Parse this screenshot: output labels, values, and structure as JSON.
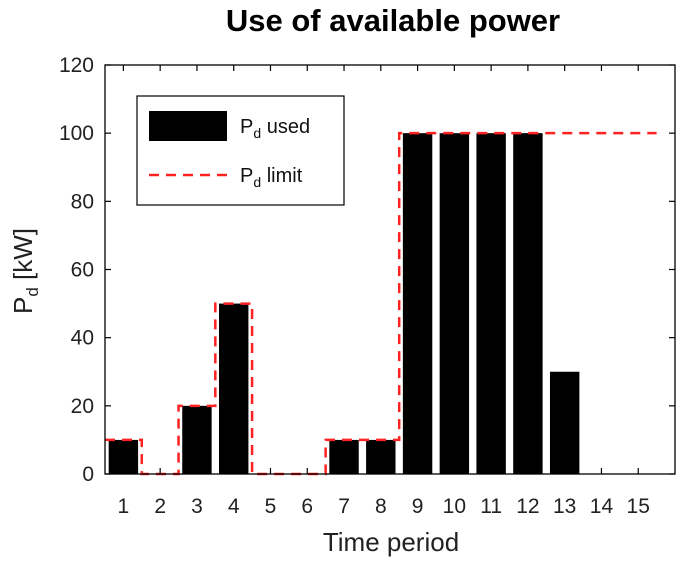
{
  "chart_data": {
    "type": "bar",
    "title": "Use of available power",
    "xlabel": "Time period",
    "ylabel_main": "P",
    "ylabel_sub": "d",
    "ylabel_unit": " [kW]",
    "categories": [
      1,
      2,
      3,
      4,
      5,
      6,
      7,
      8,
      9,
      10,
      11,
      12,
      13,
      14,
      15
    ],
    "ylim": [
      0,
      120
    ],
    "yticks": [
      0,
      20,
      40,
      60,
      80,
      100,
      120
    ],
    "grid": false,
    "legend_position": "top-left",
    "series": [
      {
        "name_main": "P",
        "name_sub": "d",
        "name_rest": " used",
        "kind": "bar",
        "color": "#000000",
        "values": [
          10,
          0,
          20,
          50,
          0,
          0,
          10,
          10,
          100,
          100,
          100,
          100,
          30,
          0,
          0
        ]
      },
      {
        "name_main": "P",
        "name_sub": "d",
        "name_rest": " limit",
        "kind": "stairs-dashed",
        "color": "#ff2222",
        "values": [
          10,
          0,
          20,
          50,
          0,
          0,
          10,
          10,
          100,
          100,
          100,
          100,
          100,
          100,
          100
        ]
      }
    ]
  }
}
